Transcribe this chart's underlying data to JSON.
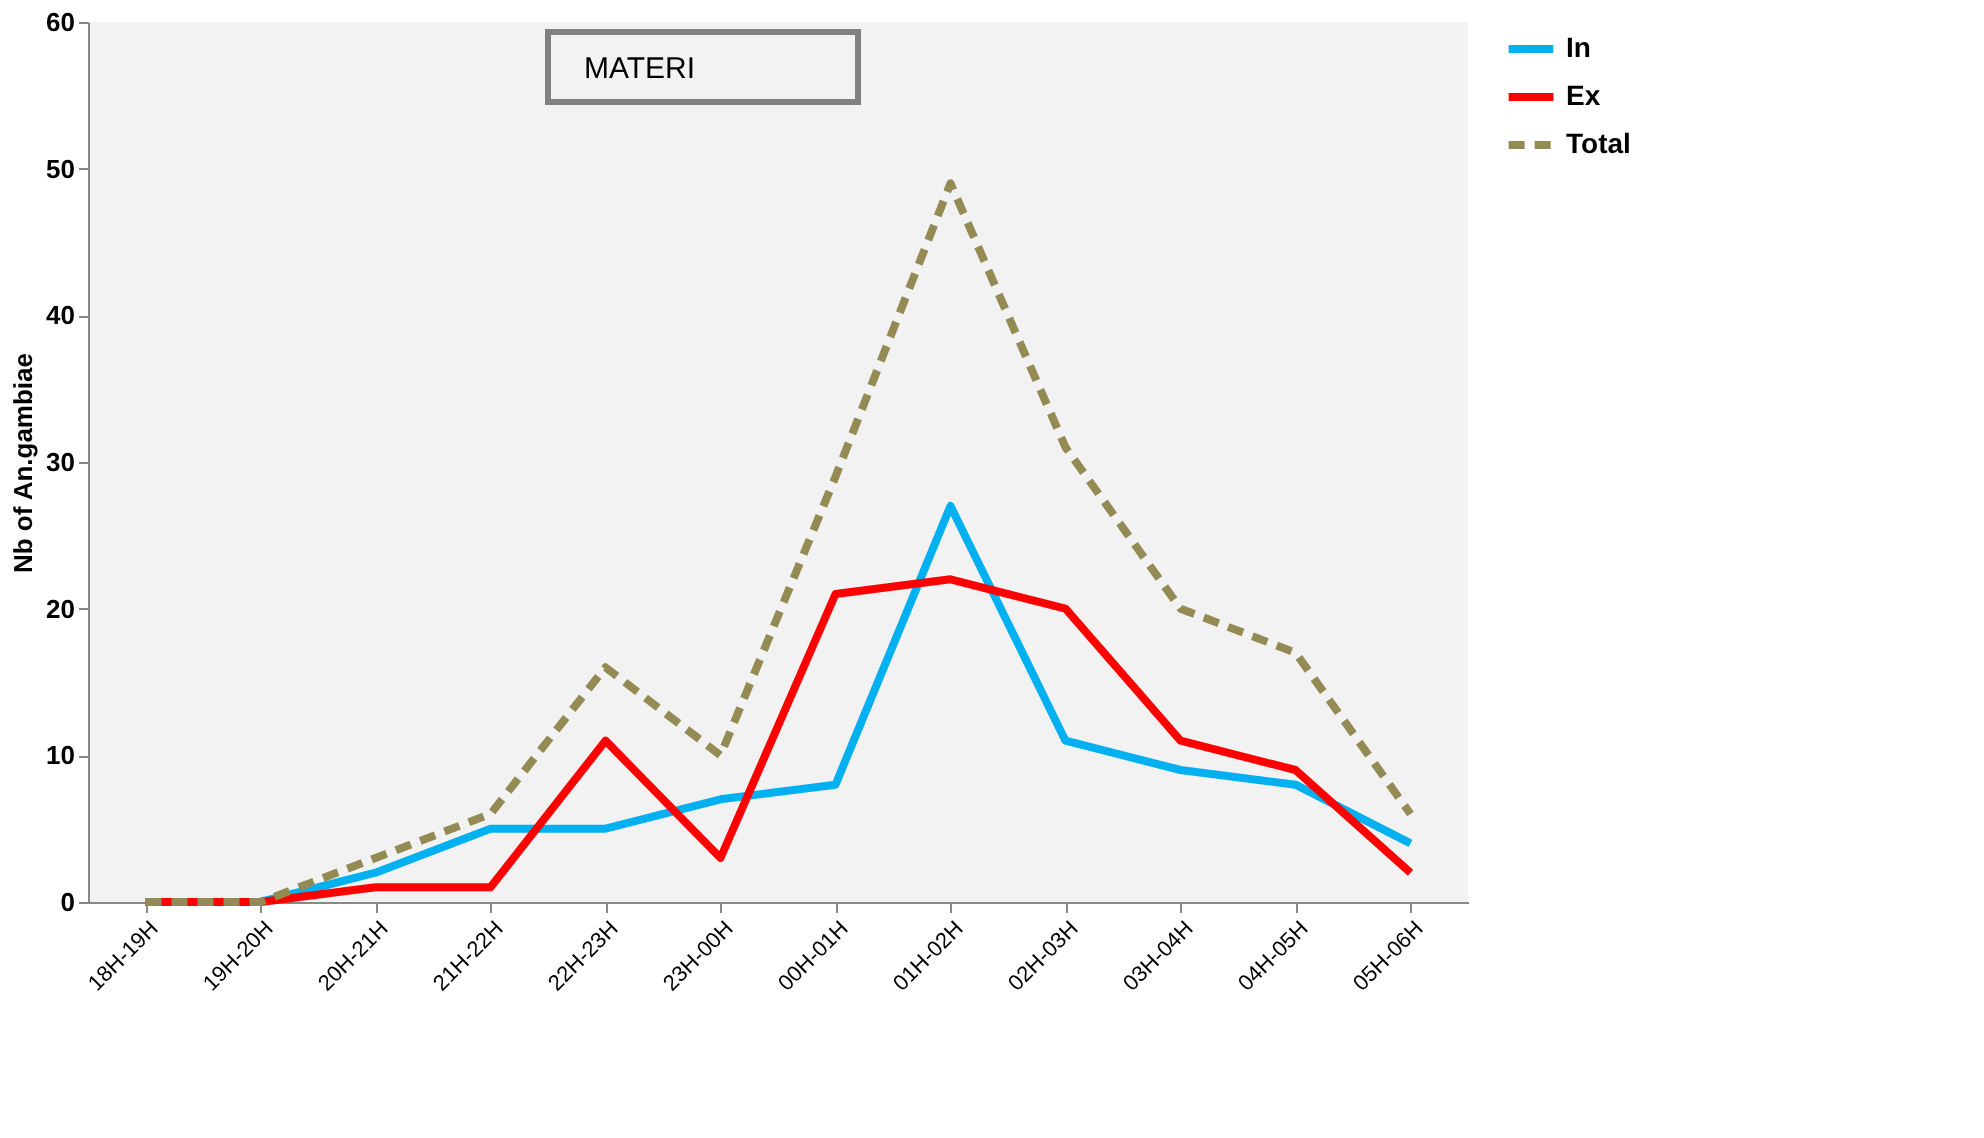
{
  "chart_data": {
    "type": "line",
    "ylabel": "Nb of An.gambiae",
    "annotations": [
      "MATERI"
    ],
    "categories": [
      "18H-19H",
      "19H-20H",
      "20H-21H",
      "21H-22H",
      "22H-23H",
      "23H-00H",
      "00H-01H",
      "01H-02H",
      "02H-03H",
      "03H-04H",
      "04H-05H",
      "05H-06H"
    ],
    "series": [
      {
        "name": "In",
        "color": "#00b0f0",
        "line_style": "solid",
        "values": [
          0,
          0,
          2,
          5,
          5,
          7,
          8,
          27,
          11,
          9,
          8,
          4
        ]
      },
      {
        "name": "Ex",
        "color": "#ff0000",
        "line_style": "solid",
        "values": [
          0,
          0,
          1,
          1,
          11,
          3,
          21,
          22,
          20,
          11,
          9,
          2
        ]
      },
      {
        "name": "Total",
        "color": "#948a54",
        "line_style": "dashed",
        "values": [
          0,
          0,
          3,
          6,
          16,
          10,
          29,
          49,
          31,
          20,
          17,
          6
        ]
      }
    ],
    "ylim": [
      0,
      60
    ],
    "yticks": [
      0,
      10,
      20,
      30,
      40,
      50,
      60
    ],
    "grid": false,
    "legend": "top right",
    "marker": "none"
  }
}
